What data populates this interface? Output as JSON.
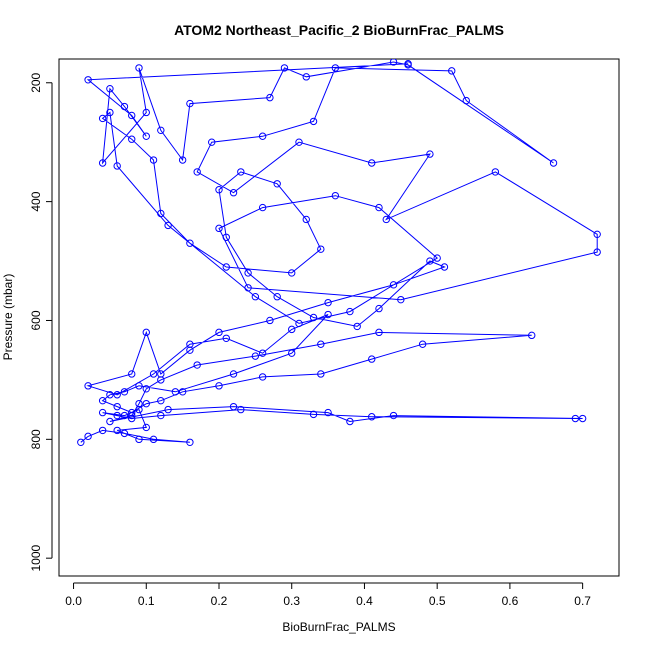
{
  "chart_data": {
    "type": "line",
    "title": "ATOM2 Northeast_Pacific_2 BioBurnFrac_PALMS",
    "xlabel": "BioBurnFrac_PALMS",
    "ylabel": "Pressure (mbar)",
    "xlim": [
      -0.02,
      0.75
    ],
    "ylim": [
      1030,
      160
    ],
    "y_reversed": true,
    "x_ticks": [
      0.0,
      0.1,
      0.2,
      0.3,
      0.4,
      0.5,
      0.6,
      0.7
    ],
    "x_tick_labels": [
      "0.0",
      "0.1",
      "0.2",
      "0.3",
      "0.4",
      "0.5",
      "0.6",
      "0.7"
    ],
    "y_ticks": [
      200,
      400,
      600,
      800,
      1000
    ],
    "y_tick_labels": [
      "200",
      "400",
      "600",
      "800",
      "1000"
    ],
    "grid": false,
    "series_color": "#0000ff",
    "series": [
      {
        "markers": "open-circle",
        "x": [
          0.46,
          0.02,
          0.08,
          0.1,
          0.07,
          0.05,
          0.04,
          0.1,
          0.09,
          0.12,
          0.15,
          0.16,
          0.27,
          0.29,
          0.32,
          0.44,
          0.46,
          0.66,
          0.54,
          0.52,
          0.36,
          0.33,
          0.26,
          0.19,
          0.17,
          0.22,
          0.31,
          0.41,
          0.49,
          0.43,
          0.58,
          0.72,
          0.72,
          0.45,
          0.24,
          0.2,
          0.26,
          0.36,
          0.42,
          0.5,
          0.38,
          0.31,
          0.25,
          0.13,
          0.06,
          0.05,
          0.04,
          0.08,
          0.11,
          0.12,
          0.16,
          0.21,
          0.3,
          0.34,
          0.32,
          0.28,
          0.23,
          0.2,
          0.21,
          0.24,
          0.28,
          0.33,
          0.39,
          0.42,
          0.49,
          0.51,
          0.44,
          0.35,
          0.27,
          0.2,
          0.16,
          0.12,
          0.1,
          0.08,
          0.02,
          0.06,
          0.11,
          0.16,
          0.21,
          0.26,
          0.3,
          0.35,
          0.3,
          0.22,
          0.14,
          0.09,
          0.07,
          0.05,
          0.04,
          0.06,
          0.08,
          0.1,
          0.12,
          0.15,
          0.2,
          0.26,
          0.34,
          0.41,
          0.48,
          0.63,
          0.42,
          0.34,
          0.25,
          0.17,
          0.12,
          0.1,
          0.09,
          0.08,
          0.05,
          0.13,
          0.22,
          0.35,
          0.38,
          0.44,
          0.7,
          0.69,
          0.41,
          0.33,
          0.23,
          0.12,
          0.08,
          0.06,
          0.04,
          0.07,
          0.09,
          0.1,
          0.06,
          0.09,
          0.16,
          0.11,
          0.07,
          0.04,
          0.02,
          0.01
        ],
        "y": [
          168,
          195,
          255,
          290,
          240,
          210,
          335,
          250,
          175,
          280,
          330,
          235,
          225,
          175,
          190,
          165,
          170,
          335,
          230,
          180,
          175,
          265,
          290,
          300,
          350,
          385,
          300,
          335,
          320,
          430,
          350,
          455,
          485,
          565,
          545,
          445,
          410,
          390,
          410,
          495,
          585,
          605,
          560,
          440,
          340,
          250,
          260,
          295,
          330,
          420,
          470,
          510,
          520,
          480,
          430,
          370,
          350,
          380,
          460,
          520,
          560,
          595,
          610,
          580,
          500,
          510,
          540,
          570,
          600,
          620,
          650,
          690,
          620,
          690,
          710,
          725,
          690,
          640,
          630,
          655,
          615,
          590,
          655,
          690,
          720,
          710,
          720,
          725,
          735,
          745,
          755,
          740,
          735,
          720,
          710,
          695,
          690,
          665,
          640,
          625,
          620,
          640,
          660,
          675,
          700,
          715,
          740,
          760,
          770,
          750,
          745,
          755,
          770,
          760,
          765,
          765,
          762,
          758,
          750,
          760,
          765,
          760,
          755,
          760,
          750,
          780,
          785,
          800,
          805,
          800,
          790,
          785,
          795,
          805
        ]
      }
    ]
  }
}
